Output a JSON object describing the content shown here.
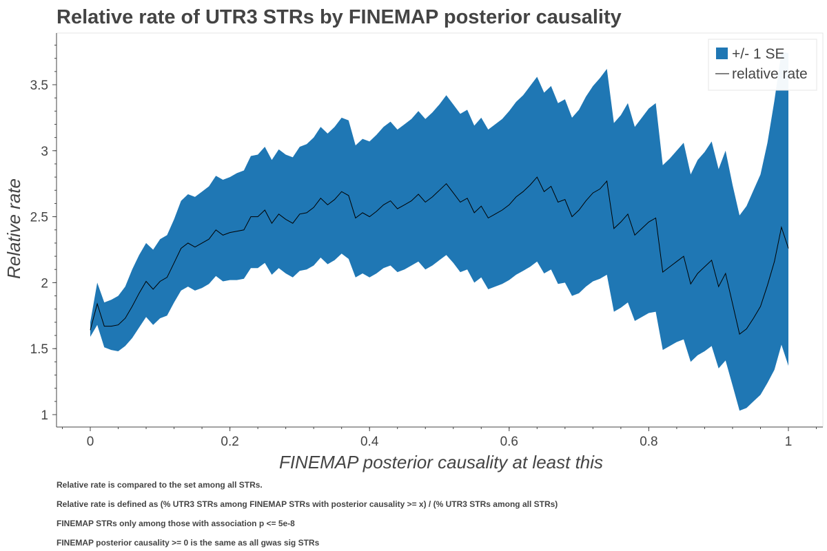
{
  "chart_data": {
    "type": "area",
    "title": "Relative rate of UTR3 STRs by FINEMAP posterior causality",
    "xlabel": "FINEMAP posterior causality at least this",
    "ylabel": "Relative rate",
    "xlim": [
      -0.05,
      1.05
    ],
    "ylim": [
      0.9,
      3.9
    ],
    "x_ticks": [
      0,
      0.2,
      0.4,
      0.6,
      0.8,
      1
    ],
    "x_tick_labels": [
      "0",
      "0.2",
      "0.4",
      "0.6",
      "0.8",
      "1"
    ],
    "y_ticks": [
      1,
      1.5,
      2,
      2.5,
      3,
      3.5
    ],
    "y_tick_labels": [
      "1",
      "1.5",
      "2",
      "2.5",
      "3",
      "3.5"
    ],
    "legend_position": "top-right",
    "band_color": "#1f77b4",
    "line_color": "#000000",
    "series": [
      {
        "name": "+/- 1 SE",
        "kind": "band"
      },
      {
        "name": "relative rate",
        "kind": "line"
      }
    ],
    "x": [
      0,
      0.01,
      0.02,
      0.03,
      0.04,
      0.05,
      0.06,
      0.07,
      0.08,
      0.09,
      0.1,
      0.11,
      0.12,
      0.13,
      0.14,
      0.15,
      0.16,
      0.17,
      0.18,
      0.19,
      0.2,
      0.21,
      0.22,
      0.23,
      0.24,
      0.25,
      0.26,
      0.27,
      0.28,
      0.29,
      0.3,
      0.31,
      0.32,
      0.33,
      0.34,
      0.35,
      0.36,
      0.37,
      0.38,
      0.39,
      0.4,
      0.41,
      0.42,
      0.43,
      0.44,
      0.45,
      0.46,
      0.47,
      0.48,
      0.49,
      0.5,
      0.51,
      0.52,
      0.53,
      0.54,
      0.55,
      0.56,
      0.57,
      0.58,
      0.59,
      0.6,
      0.61,
      0.62,
      0.63,
      0.64,
      0.65,
      0.66,
      0.67,
      0.68,
      0.69,
      0.7,
      0.71,
      0.72,
      0.73,
      0.74,
      0.75,
      0.76,
      0.77,
      0.78,
      0.79,
      0.8,
      0.81,
      0.82,
      0.83,
      0.84,
      0.85,
      0.86,
      0.87,
      0.88,
      0.89,
      0.9,
      0.91,
      0.92,
      0.93,
      0.94,
      0.95,
      0.96,
      0.97,
      0.98,
      0.99,
      1.0
    ],
    "relative_rate": [
      1.64,
      1.84,
      1.67,
      1.67,
      1.68,
      1.73,
      1.82,
      1.92,
      2.01,
      1.95,
      2.01,
      2.04,
      2.15,
      2.26,
      2.3,
      2.27,
      2.3,
      2.33,
      2.4,
      2.36,
      2.38,
      2.39,
      2.4,
      2.5,
      2.5,
      2.55,
      2.45,
      2.52,
      2.48,
      2.45,
      2.52,
      2.53,
      2.57,
      2.64,
      2.59,
      2.63,
      2.69,
      2.66,
      2.49,
      2.53,
      2.5,
      2.54,
      2.59,
      2.62,
      2.56,
      2.59,
      2.62,
      2.67,
      2.61,
      2.65,
      2.7,
      2.75,
      2.68,
      2.61,
      2.64,
      2.53,
      2.58,
      2.49,
      2.52,
      2.55,
      2.59,
      2.65,
      2.69,
      2.74,
      2.8,
      2.69,
      2.73,
      2.61,
      2.63,
      2.5,
      2.55,
      2.62,
      2.68,
      2.71,
      2.77,
      2.41,
      2.46,
      2.52,
      2.36,
      2.41,
      2.46,
      2.49,
      2.08,
      2.12,
      2.16,
      2.2,
      1.99,
      2.07,
      2.12,
      2.17,
      1.97,
      2.07,
      1.84,
      1.61,
      1.65,
      1.73,
      1.82,
      1.98,
      2.16,
      2.42,
      2.26
    ],
    "upper": [
      1.7,
      2.0,
      1.85,
      1.87,
      1.9,
      1.97,
      2.1,
      2.21,
      2.3,
      2.25,
      2.33,
      2.36,
      2.48,
      2.62,
      2.67,
      2.65,
      2.69,
      2.73,
      2.81,
      2.78,
      2.8,
      2.83,
      2.85,
      2.96,
      2.97,
      3.03,
      2.93,
      3.01,
      2.97,
      2.95,
      3.03,
      3.05,
      3.1,
      3.18,
      3.13,
      3.18,
      3.25,
      3.23,
      3.04,
      3.09,
      3.07,
      3.12,
      3.18,
      3.22,
      3.16,
      3.2,
      3.24,
      3.3,
      3.24,
      3.29,
      3.35,
      3.42,
      3.35,
      3.28,
      3.31,
      3.19,
      3.25,
      3.16,
      3.2,
      3.24,
      3.3,
      3.37,
      3.42,
      3.49,
      3.56,
      3.44,
      3.49,
      3.36,
      3.39,
      3.25,
      3.31,
      3.41,
      3.49,
      3.55,
      3.62,
      3.21,
      3.27,
      3.36,
      3.18,
      3.25,
      3.32,
      3.36,
      2.89,
      2.94,
      3.0,
      3.06,
      2.82,
      2.93,
      2.99,
      3.07,
      2.86,
      3.0,
      2.74,
      2.51,
      2.58,
      2.7,
      2.82,
      3.06,
      3.38,
      3.75,
      3.74
    ],
    "lower": [
      1.59,
      1.68,
      1.51,
      1.49,
      1.48,
      1.52,
      1.58,
      1.66,
      1.74,
      1.68,
      1.73,
      1.75,
      1.85,
      1.94,
      1.97,
      1.94,
      1.96,
      1.99,
      2.05,
      2.01,
      2.02,
      2.02,
      2.03,
      2.11,
      2.11,
      2.15,
      2.06,
      2.11,
      2.07,
      2.04,
      2.09,
      2.1,
      2.13,
      2.19,
      2.14,
      2.17,
      2.22,
      2.18,
      2.04,
      2.07,
      2.04,
      2.07,
      2.11,
      2.13,
      2.08,
      2.1,
      2.13,
      2.16,
      2.1,
      2.13,
      2.17,
      2.21,
      2.15,
      2.08,
      2.1,
      2.0,
      2.04,
      1.95,
      1.97,
      1.99,
      2.02,
      2.06,
      2.09,
      2.12,
      2.16,
      2.07,
      2.1,
      1.99,
      2.0,
      1.9,
      1.92,
      1.97,
      2.01,
      2.03,
      2.06,
      1.78,
      1.81,
      1.85,
      1.71,
      1.74,
      1.77,
      1.78,
      1.49,
      1.52,
      1.55,
      1.57,
      1.4,
      1.45,
      1.48,
      1.52,
      1.35,
      1.41,
      1.22,
      1.03,
      1.05,
      1.1,
      1.15,
      1.24,
      1.34,
      1.53,
      1.37
    ]
  },
  "notes": [
    "Relative rate is compared to the set among all STRs.",
    "Relative rate is defined as (% UTR3 STRs among FINEMAP STRs with posterior causality >= x) / (% UTR3 STRs among all STRs)",
    "FINEMAP STRs only among those with association p <= 5e-8",
    "FINEMAP posterior causality >= 0 is the same as all gwas sig STRs"
  ]
}
